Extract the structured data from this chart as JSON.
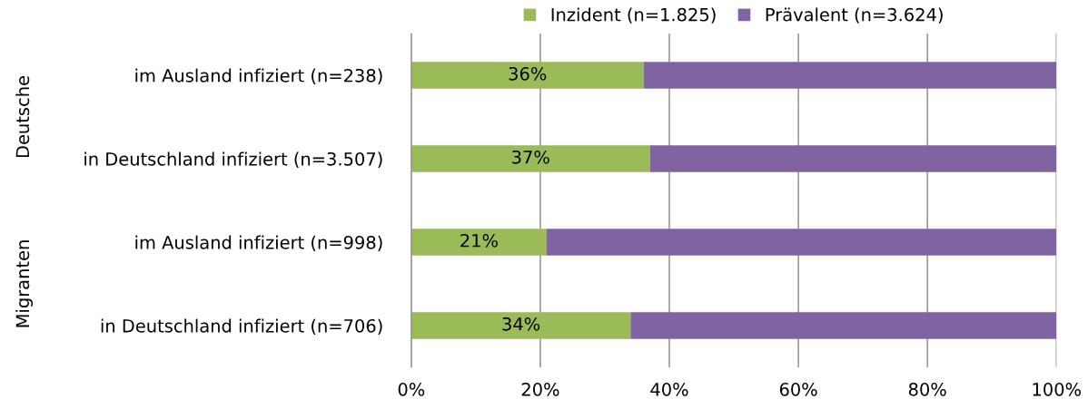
{
  "chart_data": {
    "type": "bar",
    "orientation": "horizontal",
    "stacked": true,
    "categories": [
      "im Ausland infiziert (n=238)",
      "in Deutschland infiziert (n=3.507)",
      "im Ausland infiziert (n=998)",
      "in Deutschland infiziert (n=706)"
    ],
    "series": [
      {
        "name": "Inzident (n=1.825)",
        "color": "#9bbb59",
        "values": [
          36,
          37,
          21,
          34
        ],
        "value_labels": [
          "36%",
          "37%",
          "21%",
          "34%"
        ]
      },
      {
        "name": "Prävalent (n=3.624)",
        "color": "#8064a2",
        "values": [
          64,
          63,
          79,
          66
        ]
      }
    ],
    "annotations": [
      "Deutsche",
      "Migranten"
    ],
    "xlim": [
      0,
      100
    ],
    "xticks": [
      {
        "value": 0,
        "label": "0%"
      },
      {
        "value": 20,
        "label": "20%"
      },
      {
        "value": 40,
        "label": "40%"
      },
      {
        "value": 60,
        "label": "60%"
      },
      {
        "value": 80,
        "label": "80%"
      },
      {
        "value": 100,
        "label": "100%"
      }
    ],
    "grid": "x",
    "legend": "top"
  }
}
